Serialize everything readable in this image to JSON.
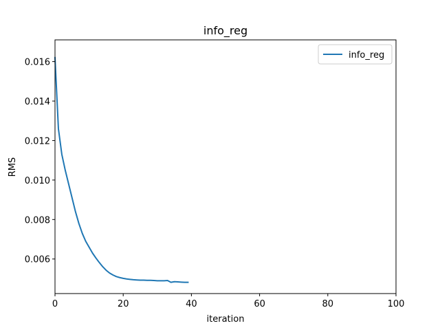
{
  "chart_data": {
    "type": "line",
    "title": "info_reg",
    "xlabel": "iteration",
    "ylabel": "RMS",
    "xlim": [
      0,
      100
    ],
    "ylim": [
      0.00425,
      0.0171
    ],
    "xticks": [
      0,
      20,
      40,
      60,
      80,
      100
    ],
    "yticks": [
      0.006,
      0.008,
      0.01,
      0.012,
      0.014,
      0.016
    ],
    "xtick_labels": [
      "0",
      "20",
      "40",
      "60",
      "80",
      "100"
    ],
    "ytick_labels": [
      "0.006",
      "0.008",
      "0.010",
      "0.012",
      "0.014",
      "0.016"
    ],
    "grid": false,
    "legend": {
      "position": "top-right",
      "entries": [
        "info_reg"
      ]
    },
    "series": [
      {
        "name": "info_reg",
        "color": "#1f77b4",
        "x": [
          0,
          1,
          2,
          3,
          4,
          5,
          6,
          7,
          8,
          9,
          10,
          11,
          12,
          13,
          14,
          15,
          16,
          17,
          18,
          19,
          20,
          21,
          22,
          23,
          24,
          25,
          26,
          27,
          28,
          29,
          30,
          31,
          32,
          33,
          34,
          35,
          36,
          37,
          38,
          39
        ],
        "y": [
          0.0162,
          0.0126,
          0.0113,
          0.0105,
          0.0098,
          0.0091,
          0.0084,
          0.0078,
          0.0073,
          0.0069,
          0.0066,
          0.0063,
          0.00605,
          0.00582,
          0.00561,
          0.00543,
          0.00529,
          0.00519,
          0.00511,
          0.00506,
          0.00502,
          0.00499,
          0.00497,
          0.00495,
          0.00494,
          0.00493,
          0.00493,
          0.00492,
          0.00492,
          0.00491,
          0.0049,
          0.0049,
          0.0049,
          0.00491,
          0.00482,
          0.00485,
          0.00484,
          0.00483,
          0.00482,
          0.00482
        ]
      }
    ]
  }
}
